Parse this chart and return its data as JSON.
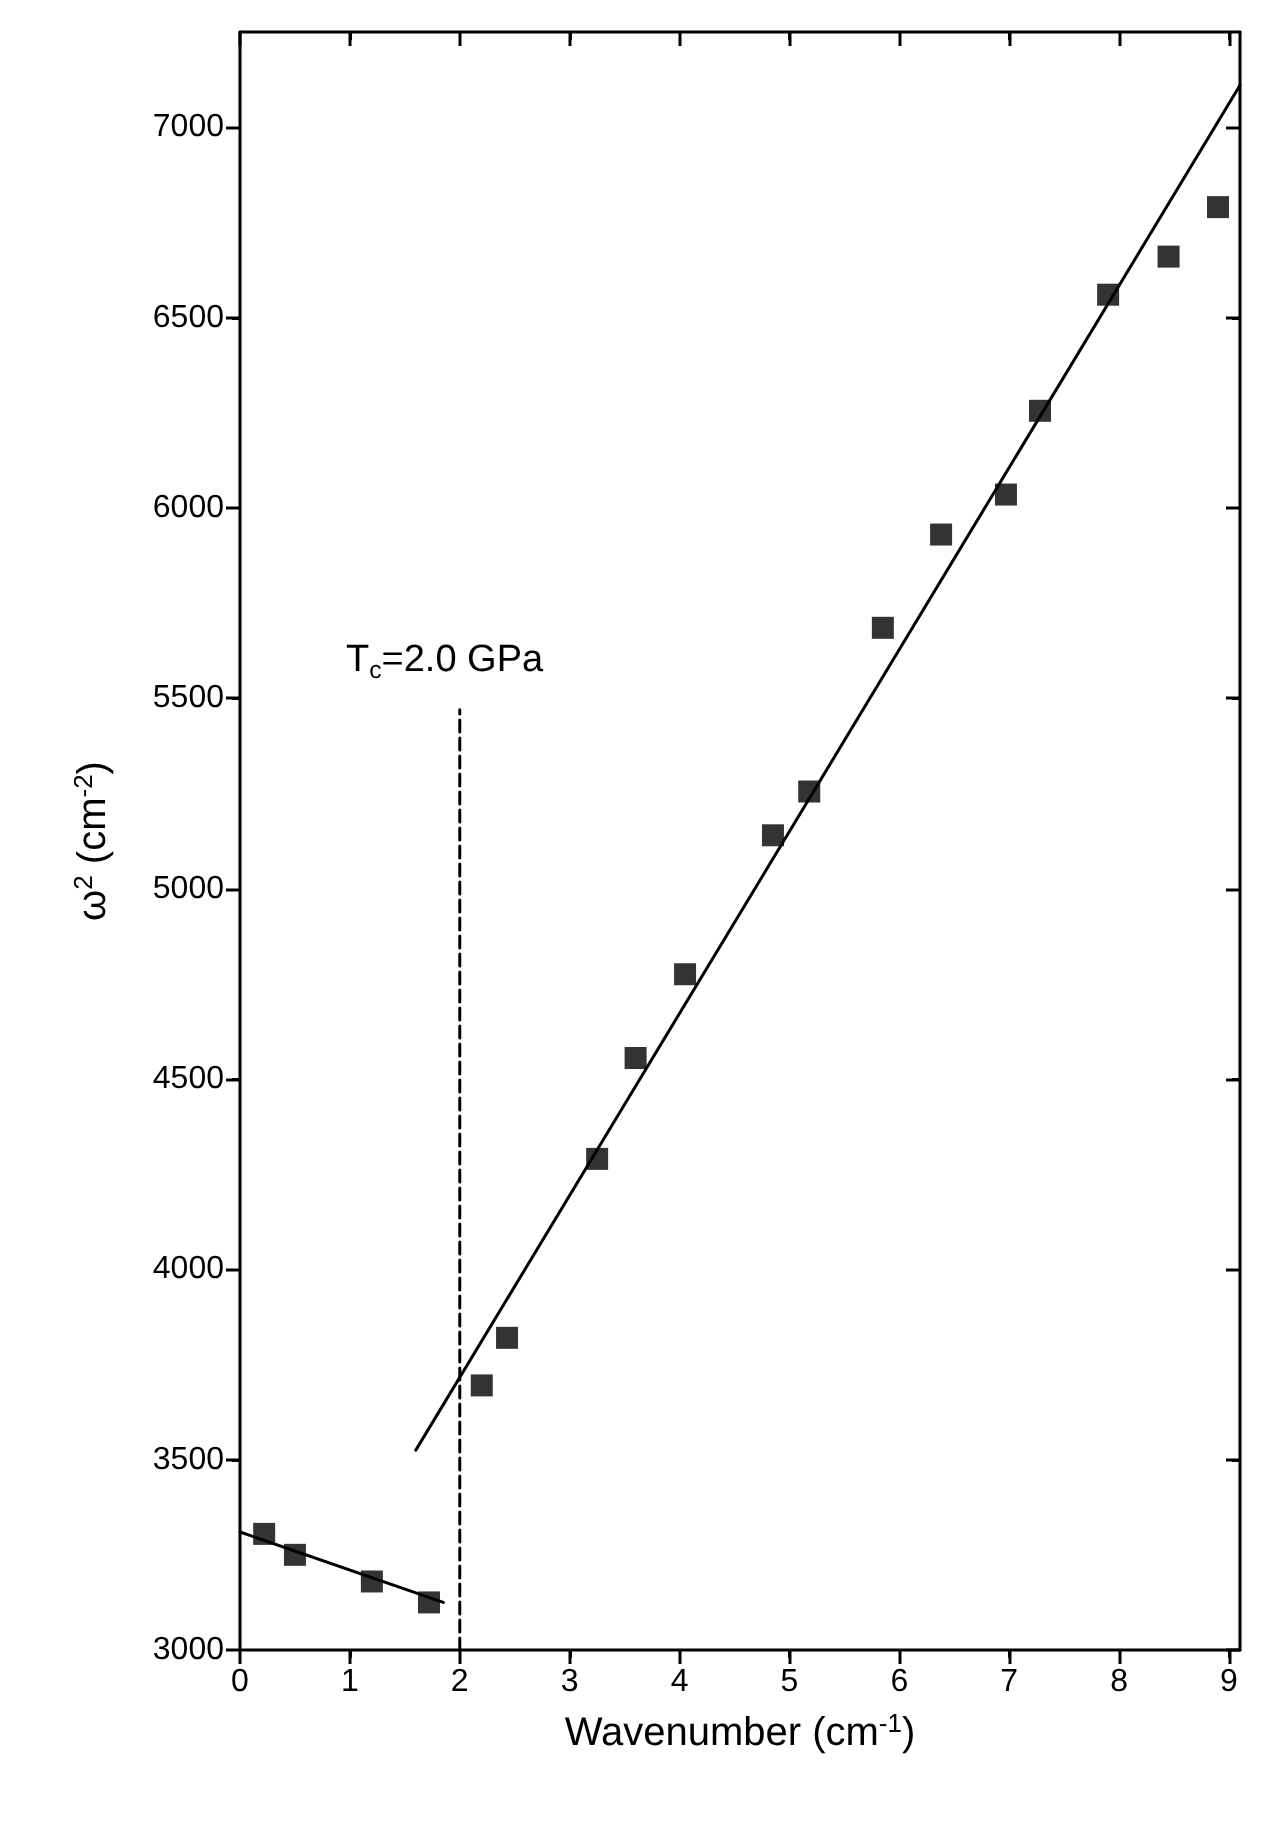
{
  "chart_data": {
    "type": "scatter",
    "xlabel": "Wavenumber (cm$^{-1}$)",
    "ylabel": "ω$^{2}$ (cm$^{-2}$)",
    "xlim": [
      0,
      9.1
    ],
    "xticks": [
      0,
      1,
      2,
      3,
      4,
      5,
      6,
      7,
      8,
      9
    ],
    "ylim": [
      3000,
      7250
    ],
    "yticks": [
      3000,
      3500,
      4000,
      4500,
      5000,
      5500,
      6000,
      6500,
      7000
    ],
    "grid": false,
    "series": [
      {
        "marker": "square",
        "color": "#000000",
        "x": [
          0.22,
          0.5,
          1.2,
          1.72,
          2.2,
          2.43,
          3.25,
          3.6,
          4.05,
          4.85,
          5.18,
          5.85,
          6.38,
          6.97,
          7.28,
          7.9,
          8.45,
          8.9
        ],
        "values": [
          3305,
          3250,
          3180,
          3125,
          3695,
          3820,
          4290,
          4555,
          4775,
          5140,
          5255,
          5685,
          5930,
          6035,
          6255,
          6560,
          6660,
          6790
        ]
      },
      {
        "type": "line",
        "marker": "none",
        "line_style": "solid",
        "color": "#000000",
        "x": [
          0,
          1.85
        ],
        "values": [
          3310,
          3125
        ]
      },
      {
        "type": "line",
        "marker": "none",
        "line_style": "solid",
        "color": "#000000",
        "x": [
          1.6,
          9.1
        ],
        "values": [
          3525,
          7110
        ]
      },
      {
        "type": "line",
        "marker": "none",
        "line_style": "dashed",
        "color": "#000000",
        "x": [
          2,
          2
        ],
        "values": [
          3000,
          5470
        ]
      }
    ],
    "annotations": [
      "T$_{c}$=2.0 GPa"
    ]
  }
}
